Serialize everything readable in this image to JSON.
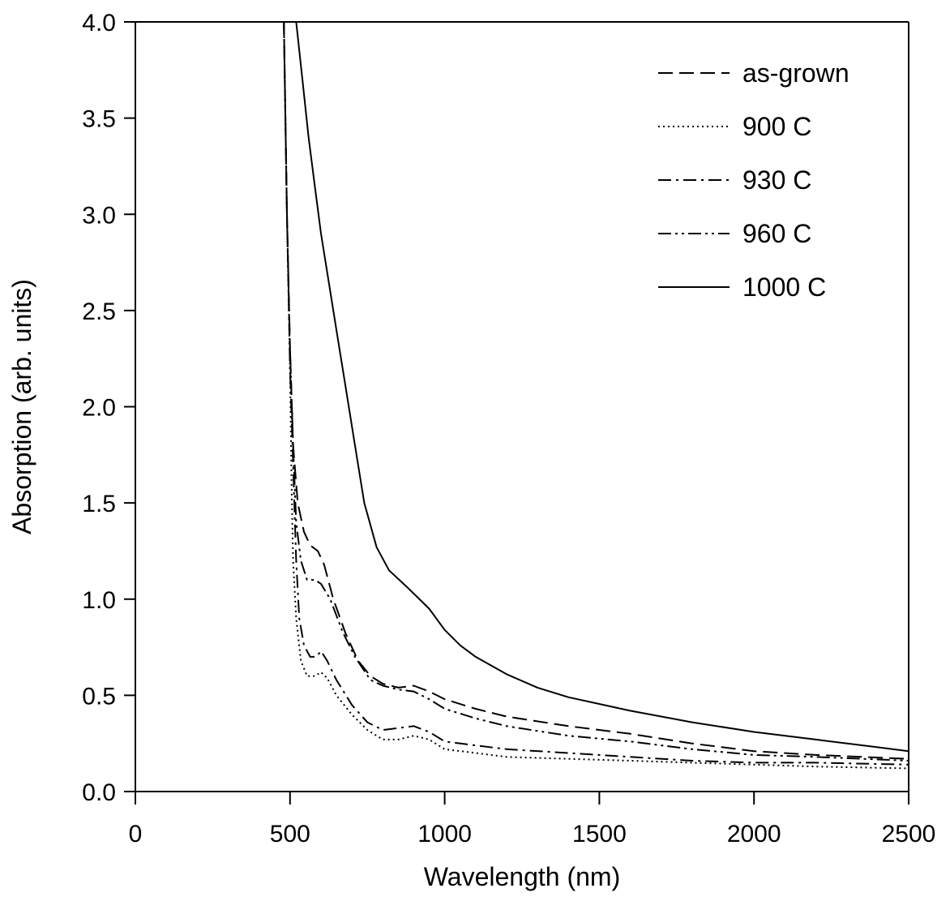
{
  "chart_data": {
    "type": "line",
    "xlabel": "Wavelength (nm)",
    "ylabel": "Absorption (arb. units)",
    "xlim": [
      0,
      2500
    ],
    "ylim": [
      0,
      4.0
    ],
    "xticks": [
      0,
      500,
      1000,
      1500,
      2000,
      2500
    ],
    "yticks": [
      0.0,
      0.5,
      1.0,
      1.5,
      2.0,
      2.5,
      3.0,
      3.5,
      4.0
    ],
    "xtick_labels": [
      "0",
      "500",
      "1000",
      "1500",
      "2000",
      "2500"
    ],
    "ytick_labels": [
      "0.0",
      "0.5",
      "1.0",
      "1.5",
      "2.0",
      "2.5",
      "3.0",
      "3.5",
      "4.0"
    ],
    "grid": false,
    "legend_position": "top-right",
    "series": [
      {
        "name": "as-grown",
        "dash": "dash",
        "points": [
          [
            480,
            4.0
          ],
          [
            490,
            3.0
          ],
          [
            500,
            2.3
          ],
          [
            510,
            1.8
          ],
          [
            525,
            1.5
          ],
          [
            545,
            1.35
          ],
          [
            565,
            1.28
          ],
          [
            590,
            1.25
          ],
          [
            610,
            1.18
          ],
          [
            640,
            1.0
          ],
          [
            680,
            0.82
          ],
          [
            720,
            0.68
          ],
          [
            760,
            0.6
          ],
          [
            800,
            0.56
          ],
          [
            850,
            0.54
          ],
          [
            900,
            0.55
          ],
          [
            950,
            0.52
          ],
          [
            1000,
            0.48
          ],
          [
            1100,
            0.43
          ],
          [
            1200,
            0.39
          ],
          [
            1400,
            0.34
          ],
          [
            1600,
            0.3
          ],
          [
            1800,
            0.25
          ],
          [
            2000,
            0.21
          ],
          [
            2200,
            0.19
          ],
          [
            2350,
            0.18
          ],
          [
            2500,
            0.17
          ]
        ]
      },
      {
        "name": "900 C",
        "dash": "dot",
        "points": [
          [
            480,
            4.0
          ],
          [
            490,
            3.0
          ],
          [
            500,
            2.2
          ],
          [
            505,
            1.6
          ],
          [
            510,
            1.2
          ],
          [
            520,
            0.9
          ],
          [
            535,
            0.68
          ],
          [
            555,
            0.6
          ],
          [
            580,
            0.6
          ],
          [
            600,
            0.62
          ],
          [
            620,
            0.59
          ],
          [
            650,
            0.5
          ],
          [
            700,
            0.4
          ],
          [
            750,
            0.32
          ],
          [
            800,
            0.27
          ],
          [
            850,
            0.27
          ],
          [
            900,
            0.29
          ],
          [
            950,
            0.27
          ],
          [
            1000,
            0.22
          ],
          [
            1100,
            0.2
          ],
          [
            1200,
            0.18
          ],
          [
            1400,
            0.17
          ],
          [
            1600,
            0.16
          ],
          [
            1800,
            0.15
          ],
          [
            2000,
            0.14
          ],
          [
            2200,
            0.13
          ],
          [
            2500,
            0.12
          ]
        ]
      },
      {
        "name": "930 C",
        "dash": "dash-dot",
        "points": [
          [
            480,
            4.0
          ],
          [
            490,
            3.0
          ],
          [
            500,
            2.2
          ],
          [
            510,
            1.7
          ],
          [
            520,
            1.2
          ],
          [
            530,
            0.9
          ],
          [
            545,
            0.76
          ],
          [
            565,
            0.7
          ],
          [
            585,
            0.7
          ],
          [
            600,
            0.73
          ],
          [
            620,
            0.68
          ],
          [
            650,
            0.58
          ],
          [
            700,
            0.45
          ],
          [
            750,
            0.36
          ],
          [
            800,
            0.32
          ],
          [
            850,
            0.33
          ],
          [
            900,
            0.34
          ],
          [
            950,
            0.31
          ],
          [
            1000,
            0.26
          ],
          [
            1100,
            0.24
          ],
          [
            1200,
            0.22
          ],
          [
            1400,
            0.2
          ],
          [
            1600,
            0.18
          ],
          [
            1800,
            0.16
          ],
          [
            2000,
            0.15
          ],
          [
            2200,
            0.15
          ],
          [
            2500,
            0.14
          ]
        ]
      },
      {
        "name": "960 C",
        "dash": "dash-dot-dot",
        "points": [
          [
            480,
            4.0
          ],
          [
            490,
            3.0
          ],
          [
            500,
            2.3
          ],
          [
            510,
            1.8
          ],
          [
            520,
            1.4
          ],
          [
            535,
            1.2
          ],
          [
            555,
            1.1
          ],
          [
            580,
            1.1
          ],
          [
            600,
            1.08
          ],
          [
            630,
            1.0
          ],
          [
            670,
            0.83
          ],
          [
            710,
            0.7
          ],
          [
            760,
            0.58
          ],
          [
            800,
            0.55
          ],
          [
            850,
            0.53
          ],
          [
            900,
            0.52
          ],
          [
            950,
            0.48
          ],
          [
            1000,
            0.43
          ],
          [
            1100,
            0.38
          ],
          [
            1200,
            0.34
          ],
          [
            1400,
            0.29
          ],
          [
            1600,
            0.26
          ],
          [
            1800,
            0.22
          ],
          [
            2000,
            0.19
          ],
          [
            2200,
            0.18
          ],
          [
            2500,
            0.16
          ]
        ]
      },
      {
        "name": "1000 C",
        "dash": "solid",
        "points": [
          [
            480,
            4.0
          ],
          [
            520,
            4.0
          ],
          [
            540,
            3.7
          ],
          [
            560,
            3.4
          ],
          [
            580,
            3.15
          ],
          [
            600,
            2.9
          ],
          [
            620,
            2.7
          ],
          [
            650,
            2.4
          ],
          [
            680,
            2.1
          ],
          [
            710,
            1.8
          ],
          [
            740,
            1.5
          ],
          [
            780,
            1.27
          ],
          [
            820,
            1.15
          ],
          [
            880,
            1.06
          ],
          [
            950,
            0.95
          ],
          [
            1000,
            0.84
          ],
          [
            1050,
            0.76
          ],
          [
            1100,
            0.7
          ],
          [
            1200,
            0.61
          ],
          [
            1300,
            0.54
          ],
          [
            1400,
            0.49
          ],
          [
            1600,
            0.42
          ],
          [
            1800,
            0.36
          ],
          [
            2000,
            0.31
          ],
          [
            2200,
            0.27
          ],
          [
            2400,
            0.23
          ],
          [
            2500,
            0.21
          ]
        ]
      }
    ]
  }
}
